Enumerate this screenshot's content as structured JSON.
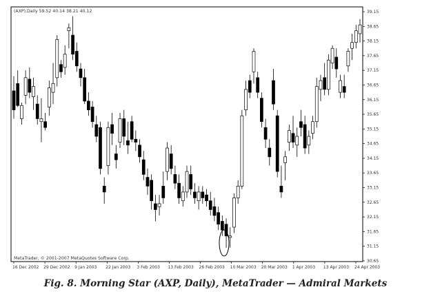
{
  "chart_data": {
    "type": "candlestick",
    "symbol_info": "(AXP),Daily  59.52 40.14 38.21 40.12",
    "copyright": "MetaTrader, © 2001-2007 MetaQuotes Software Corp.",
    "ylim": [
      30.65,
      39.15
    ],
    "y_ticks": [
      "39.15",
      "38.65",
      "38.15",
      "37.65",
      "37.15",
      "36.65",
      "36.15",
      "35.65",
      "35.15",
      "34.65",
      "34.15",
      "33.65",
      "33.15",
      "32.65",
      "32.15",
      "31.65",
      "31.15",
      "30.65"
    ],
    "x_ticks": [
      "16 Dec 2002",
      "29 Dec 2002",
      "9 Jan 2003",
      "22 Jan 2003",
      "3 Feb 2003",
      "13 Feb 2003",
      "26 Feb 2003",
      "10 Mar 2003",
      "20 Mar 2003",
      "1 Apr 2003",
      "13 Apr 2003",
      "24 Apr 2003"
    ],
    "grid": false,
    "candles": [
      {
        "o": 36.45,
        "h": 36.95,
        "l": 35.5,
        "c": 35.8
      },
      {
        "o": 36.7,
        "h": 37.15,
        "l": 35.9,
        "c": 35.95
      },
      {
        "o": 35.5,
        "h": 36.05,
        "l": 35.3,
        "c": 35.95
      },
      {
        "o": 36.3,
        "h": 37.15,
        "l": 36.0,
        "c": 36.9
      },
      {
        "o": 36.85,
        "h": 37.25,
        "l": 36.2,
        "c": 36.4
      },
      {
        "o": 36.25,
        "h": 36.9,
        "l": 35.8,
        "c": 36.6
      },
      {
        "o": 36.0,
        "h": 36.3,
        "l": 35.3,
        "c": 35.5
      },
      {
        "o": 35.4,
        "h": 36.2,
        "l": 34.7,
        "c": 35.5
      },
      {
        "o": 35.4,
        "h": 35.7,
        "l": 35.1,
        "c": 35.2
      },
      {
        "o": 35.9,
        "h": 36.8,
        "l": 35.6,
        "c": 36.55
      },
      {
        "o": 36.4,
        "h": 37.4,
        "l": 36.0,
        "c": 36.7
      },
      {
        "o": 36.9,
        "h": 38.35,
        "l": 36.6,
        "c": 38.2
      },
      {
        "o": 37.35,
        "h": 37.5,
        "l": 36.9,
        "c": 37.1
      },
      {
        "o": 37.25,
        "h": 38.0,
        "l": 37.0,
        "c": 37.7
      },
      {
        "o": 38.5,
        "h": 38.75,
        "l": 37.9,
        "c": 38.6
      },
      {
        "o": 38.35,
        "h": 39.0,
        "l": 37.5,
        "c": 37.7
      },
      {
        "o": 37.8,
        "h": 38.1,
        "l": 37.1,
        "c": 37.3
      },
      {
        "o": 37.2,
        "h": 37.4,
        "l": 36.6,
        "c": 36.9
      },
      {
        "o": 36.9,
        "h": 37.2,
        "l": 36.0,
        "c": 36.1
      },
      {
        "o": 36.1,
        "h": 36.4,
        "l": 35.6,
        "c": 35.8
      },
      {
        "o": 35.9,
        "h": 36.1,
        "l": 35.2,
        "c": 35.4
      },
      {
        "o": 35.3,
        "h": 35.6,
        "l": 34.7,
        "c": 34.9
      },
      {
        "o": 35.2,
        "h": 35.4,
        "l": 33.6,
        "c": 33.8
      },
      {
        "o": 33.2,
        "h": 33.5,
        "l": 32.6,
        "c": 33.0
      },
      {
        "o": 33.9,
        "h": 35.4,
        "l": 33.6,
        "c": 35.2
      },
      {
        "o": 35.3,
        "h": 35.7,
        "l": 34.6,
        "c": 35.0
      },
      {
        "o": 34.3,
        "h": 34.6,
        "l": 33.8,
        "c": 34.1
      },
      {
        "o": 34.7,
        "h": 35.7,
        "l": 34.5,
        "c": 35.5
      },
      {
        "o": 35.5,
        "h": 35.8,
        "l": 34.6,
        "c": 34.9
      },
      {
        "o": 34.75,
        "h": 35.4,
        "l": 34.3,
        "c": 34.6
      },
      {
        "o": 35.4,
        "h": 35.6,
        "l": 34.7,
        "c": 34.8
      },
      {
        "o": 34.8,
        "h": 35.1,
        "l": 34.4,
        "c": 34.7
      },
      {
        "o": 34.6,
        "h": 34.8,
        "l": 34.0,
        "c": 34.2
      },
      {
        "o": 34.1,
        "h": 34.4,
        "l": 33.4,
        "c": 33.6
      },
      {
        "o": 33.5,
        "h": 33.8,
        "l": 32.9,
        "c": 33.2
      },
      {
        "o": 33.4,
        "h": 33.6,
        "l": 32.4,
        "c": 32.7
      },
      {
        "o": 32.6,
        "h": 32.9,
        "l": 32.0,
        "c": 32.4
      },
      {
        "o": 32.5,
        "h": 32.9,
        "l": 32.2,
        "c": 32.6
      },
      {
        "o": 33.2,
        "h": 33.7,
        "l": 32.6,
        "c": 32.8
      },
      {
        "o": 33.7,
        "h": 34.7,
        "l": 33.4,
        "c": 34.5
      },
      {
        "o": 34.3,
        "h": 34.6,
        "l": 33.6,
        "c": 33.8
      },
      {
        "o": 33.6,
        "h": 33.9,
        "l": 33.1,
        "c": 33.3
      },
      {
        "o": 33.3,
        "h": 33.6,
        "l": 32.6,
        "c": 32.8
      },
      {
        "o": 32.7,
        "h": 33.2,
        "l": 32.5,
        "c": 33.0
      },
      {
        "o": 33.0,
        "h": 33.9,
        "l": 32.8,
        "c": 33.7
      },
      {
        "o": 33.6,
        "h": 33.9,
        "l": 32.9,
        "c": 33.1
      },
      {
        "o": 33.0,
        "h": 33.3,
        "l": 32.6,
        "c": 32.8
      },
      {
        "o": 32.7,
        "h": 33.2,
        "l": 32.4,
        "c": 33.0
      },
      {
        "o": 33.0,
        "h": 33.2,
        "l": 32.6,
        "c": 32.8
      },
      {
        "o": 32.9,
        "h": 33.1,
        "l": 32.5,
        "c": 32.7
      },
      {
        "o": 32.7,
        "h": 33.0,
        "l": 32.2,
        "c": 32.4
      },
      {
        "o": 32.5,
        "h": 32.8,
        "l": 32.0,
        "c": 32.2
      },
      {
        "o": 32.3,
        "h": 32.5,
        "l": 31.7,
        "c": 31.9
      },
      {
        "o": 32.0,
        "h": 32.2,
        "l": 31.5,
        "c": 31.7
      },
      {
        "o": 31.9,
        "h": 32.1,
        "l": 31.1,
        "c": 31.5
      },
      {
        "o": 31.45,
        "h": 31.8,
        "l": 31.1,
        "c": 31.5
      },
      {
        "o": 31.8,
        "h": 32.95,
        "l": 31.6,
        "c": 32.8
      },
      {
        "o": 32.8,
        "h": 33.4,
        "l": 32.6,
        "c": 33.2
      },
      {
        "o": 33.2,
        "h": 35.8,
        "l": 33.1,
        "c": 35.6
      },
      {
        "o": 35.8,
        "h": 36.8,
        "l": 35.6,
        "c": 36.5
      },
      {
        "o": 36.8,
        "h": 37.0,
        "l": 36.2,
        "c": 36.4
      },
      {
        "o": 37.1,
        "h": 37.9,
        "l": 36.7,
        "c": 37.8
      },
      {
        "o": 36.9,
        "h": 37.1,
        "l": 36.2,
        "c": 36.4
      },
      {
        "o": 36.2,
        "h": 36.4,
        "l": 35.2,
        "c": 35.4
      },
      {
        "o": 35.2,
        "h": 35.5,
        "l": 34.5,
        "c": 34.8
      },
      {
        "o": 34.5,
        "h": 34.8,
        "l": 33.9,
        "c": 34.2
      },
      {
        "o": 36.8,
        "h": 37.2,
        "l": 35.8,
        "c": 36.0
      },
      {
        "o": 35.6,
        "h": 35.8,
        "l": 33.5,
        "c": 33.7
      },
      {
        "o": 33.2,
        "h": 33.9,
        "l": 32.8,
        "c": 33.0
      },
      {
        "o": 34.0,
        "h": 34.4,
        "l": 33.4,
        "c": 34.2
      },
      {
        "o": 34.7,
        "h": 35.3,
        "l": 34.4,
        "c": 35.1
      },
      {
        "o": 35.0,
        "h": 35.6,
        "l": 34.5,
        "c": 34.7
      },
      {
        "o": 34.6,
        "h": 35.2,
        "l": 34.2,
        "c": 34.9
      },
      {
        "o": 35.4,
        "h": 35.8,
        "l": 34.9,
        "c": 35.2
      },
      {
        "o": 35.3,
        "h": 35.6,
        "l": 34.3,
        "c": 34.5
      },
      {
        "o": 34.6,
        "h": 35.1,
        "l": 34.3,
        "c": 34.9
      },
      {
        "o": 35.0,
        "h": 35.6,
        "l": 34.8,
        "c": 35.4
      },
      {
        "o": 35.4,
        "h": 36.9,
        "l": 35.2,
        "c": 36.6
      },
      {
        "o": 36.5,
        "h": 37.0,
        "l": 36.1,
        "c": 36.8
      },
      {
        "o": 36.9,
        "h": 37.4,
        "l": 36.3,
        "c": 36.5
      },
      {
        "o": 36.5,
        "h": 37.7,
        "l": 36.3,
        "c": 37.5
      },
      {
        "o": 37.4,
        "h": 38.0,
        "l": 37.2,
        "c": 37.9
      },
      {
        "o": 37.6,
        "h": 37.9,
        "l": 36.9,
        "c": 37.2
      },
      {
        "o": 36.4,
        "h": 37.0,
        "l": 36.2,
        "c": 36.8
      },
      {
        "o": 36.6,
        "h": 37.0,
        "l": 36.2,
        "c": 36.4
      },
      {
        "o": 37.3,
        "h": 37.9,
        "l": 37.1,
        "c": 37.8
      },
      {
        "o": 37.9,
        "h": 38.4,
        "l": 37.5,
        "c": 38.1
      },
      {
        "o": 38.1,
        "h": 38.7,
        "l": 37.9,
        "c": 38.5
      },
      {
        "o": 38.4,
        "h": 38.9,
        "l": 38.1,
        "c": 38.7
      }
    ]
  },
  "caption": "Fig. 8. Morning Star (AXP, Daily), MetaTrader — Admiral Markets",
  "colors": {
    "bull_body": "#ffffff",
    "bear_body": "#000000",
    "line": "#000000"
  }
}
